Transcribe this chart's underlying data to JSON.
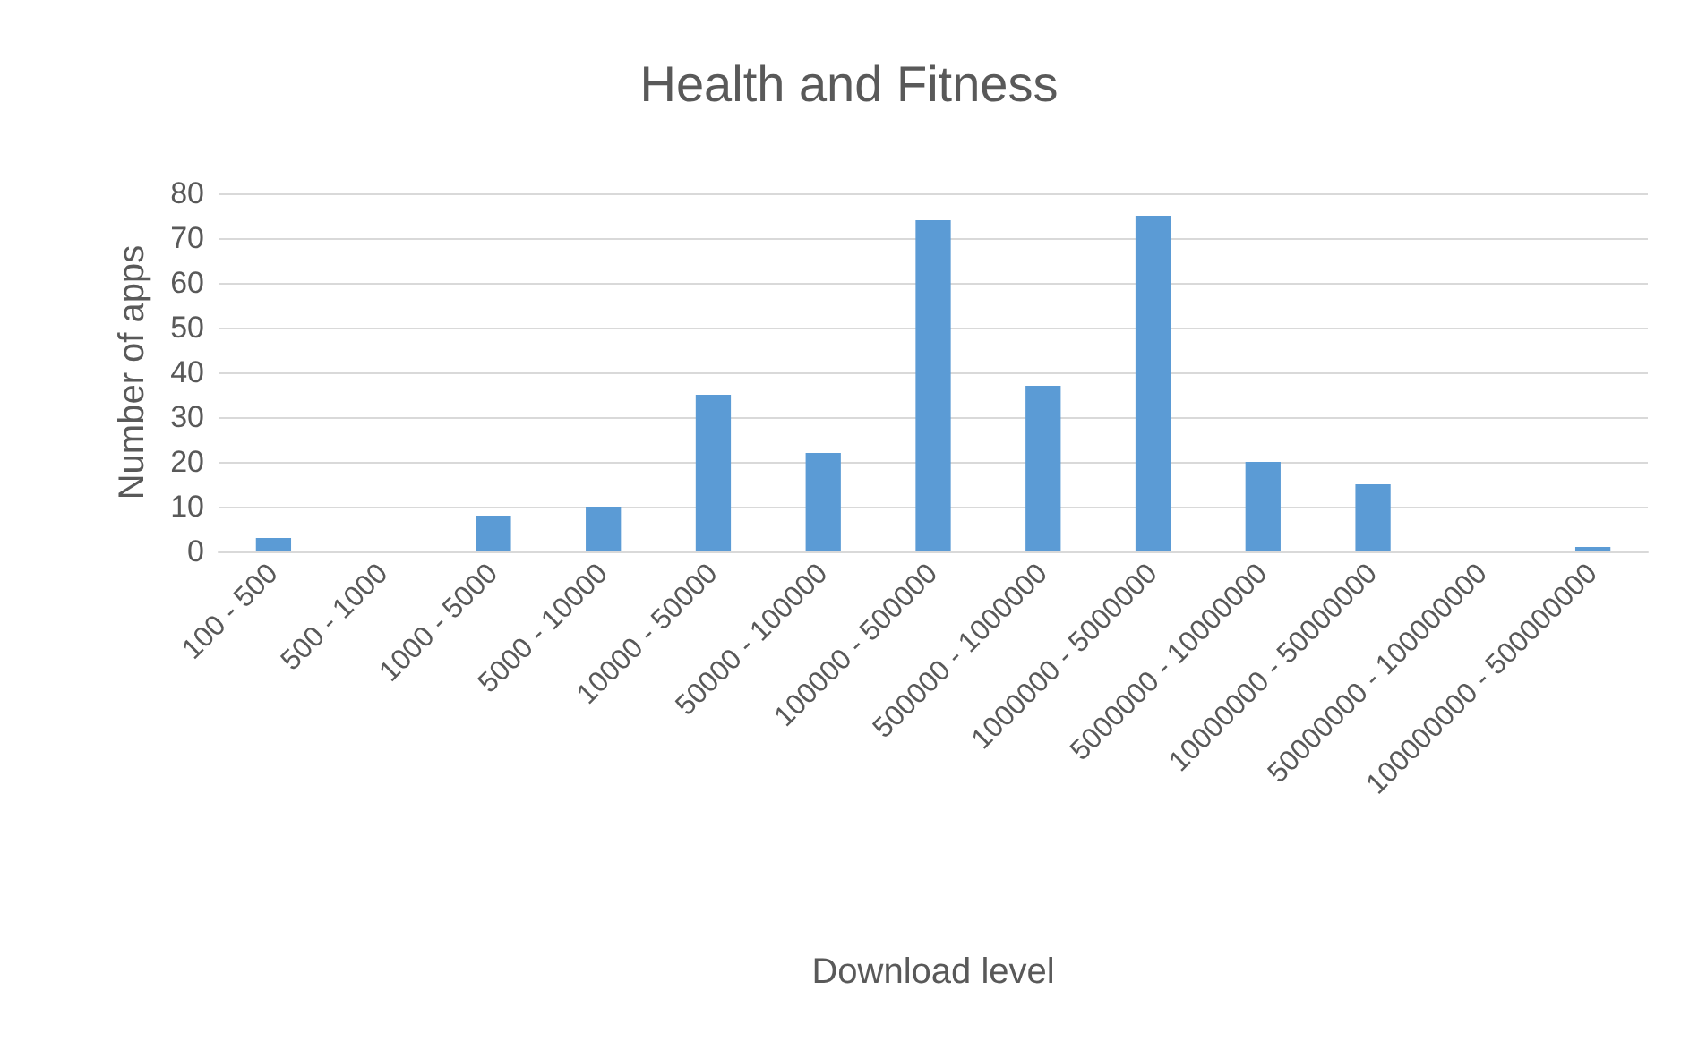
{
  "chart_data": {
    "type": "bar",
    "title": "Health and Fitness",
    "xlabel": "Download level",
    "ylabel": "Number of apps",
    "categories": [
      "100 - 500",
      "500 - 1000",
      "1000 - 5000",
      "5000 - 10000",
      "10000 - 50000",
      "50000 - 100000",
      "100000 - 500000",
      "500000 - 1000000",
      "1000000 - 5000000",
      "5000000 - 10000000",
      "10000000 - 50000000",
      "50000000 - 100000000",
      "100000000 - 500000000"
    ],
    "values": [
      3,
      0,
      8,
      10,
      35,
      22,
      74,
      37,
      75,
      20,
      15,
      0,
      1
    ],
    "color": "#5b9bd5",
    "ylim": [
      0,
      80
    ],
    "yticks": [
      0,
      10,
      20,
      30,
      40,
      50,
      60,
      70,
      80
    ],
    "grid": "y"
  }
}
